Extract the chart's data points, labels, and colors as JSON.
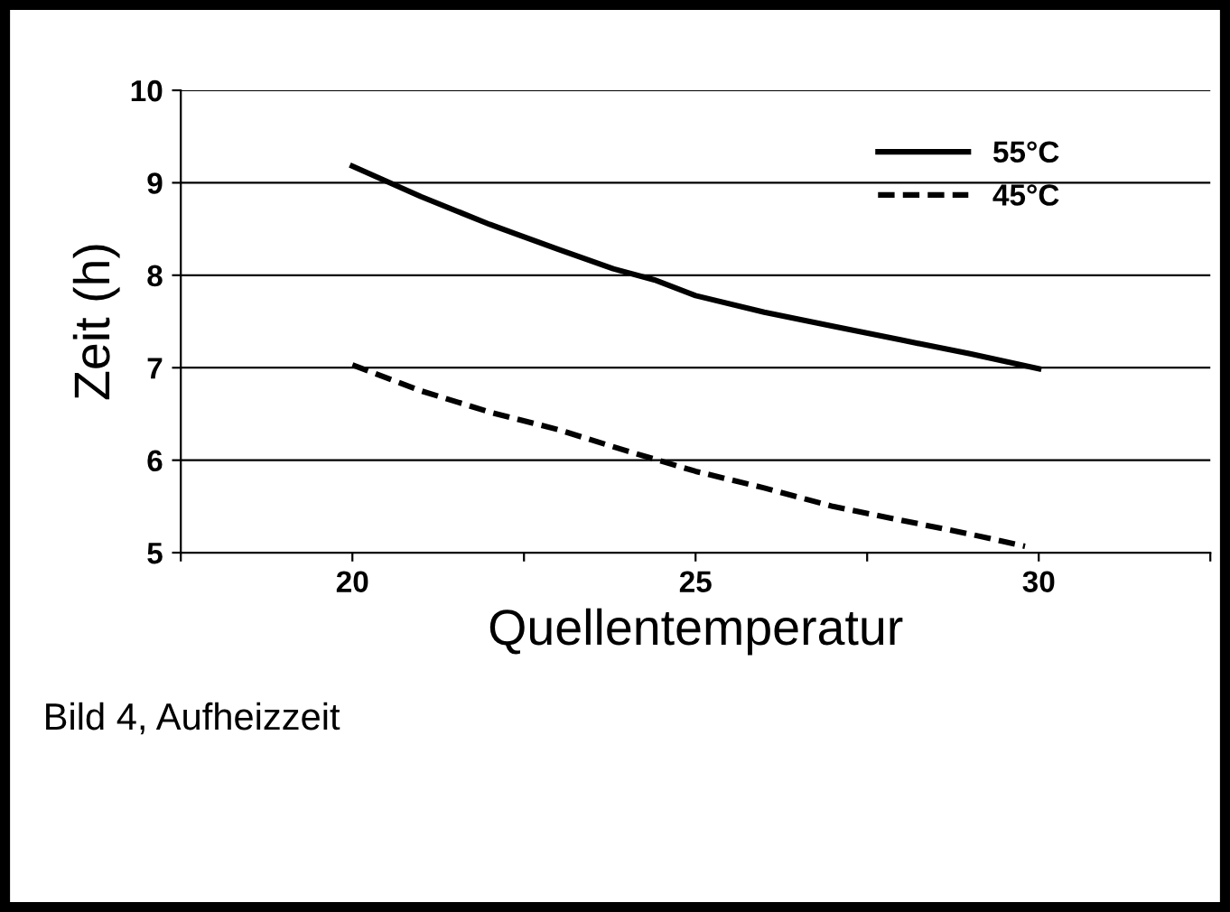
{
  "chart_data": {
    "type": "line",
    "xlabel": "Quellentemperatur",
    "ylabel": "Zeit (h)",
    "annotations": [
      "Bild 4, Aufheizzeit"
    ],
    "series": [
      {
        "name": "55°C",
        "color": "#000000",
        "line_style": "solid",
        "x": [
          20,
          21,
          22,
          23,
          23.8,
          24.4,
          25,
          26,
          27,
          28,
          29,
          30
        ],
        "values": [
          9.18,
          8.85,
          8.55,
          8.28,
          8.07,
          7.95,
          7.78,
          7.6,
          7.45,
          7.3,
          7.15,
          6.99
        ]
      },
      {
        "name": "45°C",
        "color": "#000000",
        "line_style": "dashed",
        "x": [
          20,
          21,
          22,
          23,
          24,
          25,
          26,
          27,
          28,
          29,
          29.8
        ],
        "values": [
          7.03,
          6.75,
          6.52,
          6.33,
          6.1,
          5.88,
          5.7,
          5.5,
          5.35,
          5.2,
          5.07
        ]
      }
    ],
    "xlim": [
      17.5,
      32.5
    ],
    "xticks": [
      {
        "value": 17.5,
        "label": null
      },
      20,
      {
        "value": 22.5,
        "label": null
      },
      25,
      {
        "value": 27.5,
        "label": null
      },
      30,
      {
        "value": 32.5,
        "label": null
      }
    ],
    "ylim": [
      5,
      10
    ],
    "yticks": [
      5,
      6,
      7,
      8,
      9,
      10
    ],
    "grid": "y",
    "legend": "top right",
    "marker": "none"
  }
}
